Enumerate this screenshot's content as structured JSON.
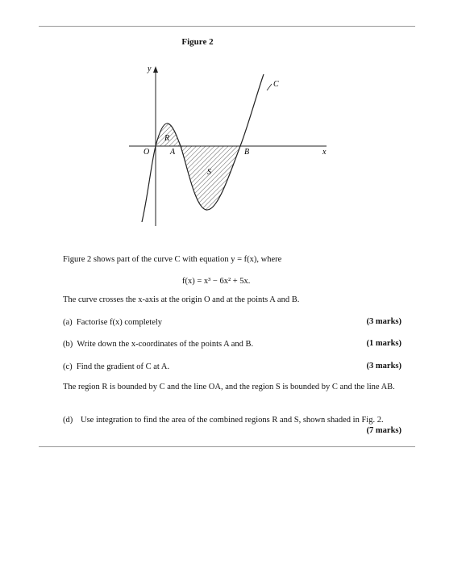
{
  "figure": {
    "title": "Figure 2",
    "labels": {
      "y": "y",
      "x": "x",
      "O": "O",
      "A": "A",
      "B": "B",
      "C": "C",
      "R": "R",
      "S": "S"
    }
  },
  "intro": "Figure 2 shows part of the curve C with equation y = f(x), where",
  "equation": "f(x) = x³ − 6x² + 5x.",
  "statement": "The curve crosses the x-axis at the origin O and at the points A and B.",
  "parts": [
    {
      "label": "(a)",
      "text": "Factorise f(x) completely",
      "marks": "(3 marks)"
    },
    {
      "label": "(b)",
      "text": "Write down the x-coordinates of the points A and B.",
      "marks": "(1 marks)"
    },
    {
      "label": "(c)",
      "text": "Find the gradient of C at A.",
      "marks": "(3 marks)"
    },
    {
      "label": "(d)",
      "text": "Use integration to find the area of the combined regions R and S, shown shaded in Fig. 2.",
      "marks": "(7 marks)"
    }
  ],
  "region_statement": "The region R is bounded by C and the line OA, and the region S is bounded by C and the line AB."
}
